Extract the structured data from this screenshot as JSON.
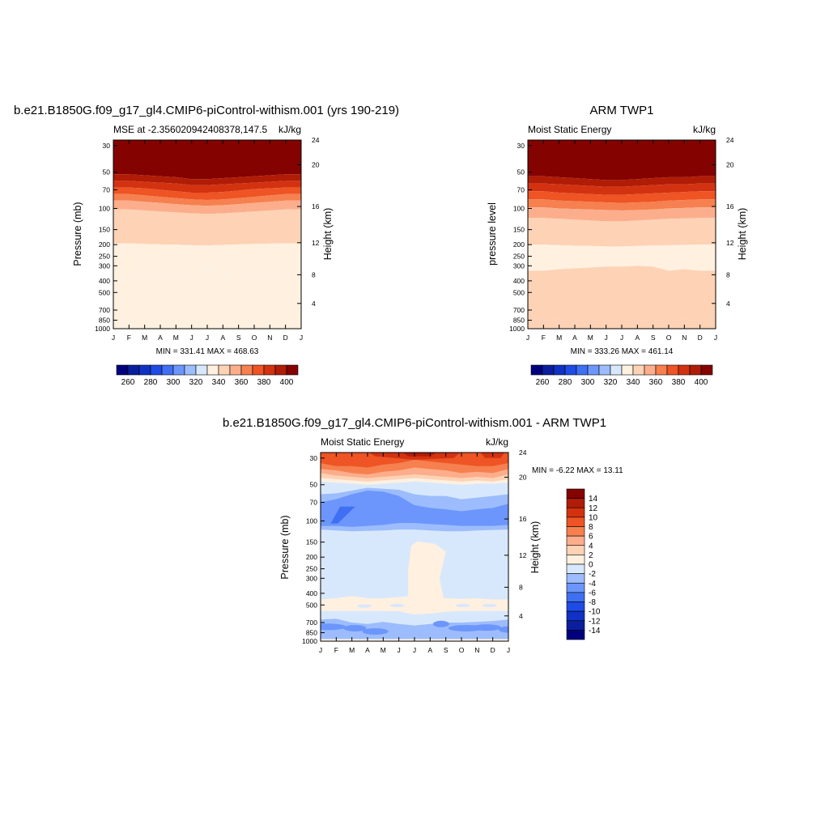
{
  "colors": {
    "palette": [
      "#00007f",
      "#0a1e9e",
      "#0f32c4",
      "#1e4be6",
      "#3f6ff2",
      "#6c96fb",
      "#9cbcfd",
      "#d8e8fc",
      "#fff0e0",
      "#fdd2b5",
      "#fcae8c",
      "#f6804f",
      "#ee5424",
      "#d33211",
      "#b01c06",
      "#840300"
    ],
    "palette_neg": [
      "#00007f",
      "#0a1e9e",
      "#0f32c4",
      "#1e4be6",
      "#3f6ff2",
      "#6c96fb",
      "#9cbcfd",
      "#d8e8fc"
    ],
    "palette_pos": [
      "#fff0e0",
      "#fdd2b5",
      "#fcae8c",
      "#f6804f",
      "#ee5424",
      "#d33211",
      "#b01c06",
      "#840300"
    ]
  },
  "months": [
    "J",
    "F",
    "M",
    "A",
    "M",
    "J",
    "J",
    "A",
    "S",
    "O",
    "N",
    "D",
    "J"
  ],
  "pressure_ticks": [
    "30",
    "50",
    "70",
    "100",
    "150",
    "200",
    "250",
    "300",
    "400",
    "500",
    "700",
    "850",
    "1000"
  ],
  "height_ticks": [
    "24",
    "20",
    "16",
    "12",
    "8",
    "4"
  ],
  "top_colorbar_labels": [
    "260",
    "280",
    "300",
    "320",
    "340",
    "360",
    "380",
    "400"
  ],
  "diff_colorbar_labels": [
    "14",
    "12",
    "10",
    "8",
    "6",
    "4",
    "2",
    "0",
    "-2",
    "-4",
    "-6",
    "-8",
    "-10",
    "-12",
    "-14"
  ],
  "panel_model": {
    "title": "b.e21.B1850G.f09_g17_gl4.CMIP6-piControl-withism.001 (yrs 190-219)",
    "left_string": "MSE at -2.3560209424083​78,147.5",
    "right_string": "kJ/kg",
    "ylabel": "Pressure (mb)",
    "rlabel": "Height (km)",
    "stats": "MIN = 331.41 MAX = 468.63"
  },
  "panel_obs": {
    "title": "ARM TWP1",
    "left_string": "Moist Static Energy",
    "right_string": "kJ/kg",
    "ylabel": "pressure level",
    "rlabel": "Height (km)",
    "stats": "MIN = 333.26 MAX = 461.14"
  },
  "panel_diff": {
    "title": "b.e21.B1850G.f09_g17_gl4.CMIP6-piControl-withism.001 - ARM TWP1",
    "left_string": "Moist Static Energy",
    "right_string": "kJ/kg",
    "ylabel": "Pressure (mb)",
    "rlabel": "Height (km)",
    "stats": "MIN =  -6.22 MAX =  13.11"
  },
  "chart_data": [
    {
      "type": "heatmap",
      "title": "b.e21.B1850G.f09_g17_gl4.CMIP6-piControl-withism.001 (yrs 190-219)",
      "xlabel": "",
      "ylabel": "Pressure (mb)",
      "x": [
        "J",
        "F",
        "M",
        "A",
        "M",
        "J",
        "J",
        "A",
        "S",
        "O",
        "N",
        "D",
        "J"
      ],
      "y_pressure": [
        30,
        50,
        70,
        100,
        150,
        200,
        250,
        300,
        400,
        500,
        700,
        850,
        1000
      ],
      "y_height_km": [
        24,
        20,
        16,
        12,
        8,
        4
      ],
      "levels": [
        260,
        270,
        280,
        290,
        300,
        310,
        320,
        330,
        340,
        350,
        360,
        370,
        380,
        390,
        400,
        410
      ],
      "band_boundaries_mb": [
        [
          52,
          59,
          67,
          76,
          86,
          102,
          195,
          360,
          940
        ],
        [
          52,
          59,
          67,
          76,
          86,
          102,
          195,
          360,
          940
        ],
        [
          53,
          60,
          68,
          78,
          88,
          104,
          197,
          355,
          940
        ],
        [
          54,
          61,
          70,
          80,
          90,
          106,
          199,
          350,
          940
        ],
        [
          55,
          62,
          72,
          82,
          92,
          108,
          200,
          345,
          940
        ],
        [
          57,
          64,
          74,
          84,
          94,
          110,
          202,
          340,
          940
        ],
        [
          57,
          64,
          74,
          85,
          95,
          111,
          203,
          335,
          940
        ],
        [
          56,
          63,
          73,
          84,
          94,
          110,
          201,
          338,
          940
        ],
        [
          55,
          62,
          71,
          82,
          92,
          108,
          199,
          342,
          940
        ],
        [
          54,
          61,
          69,
          80,
          90,
          106,
          197,
          345,
          940
        ],
        [
          53,
          60,
          68,
          78,
          88,
          104,
          196,
          352,
          940
        ],
        [
          52,
          59,
          67,
          76,
          86,
          102,
          195,
          356,
          940
        ],
        [
          52,
          59,
          67,
          76,
          86,
          102,
          195,
          360,
          940
        ]
      ],
      "band_colors": [
        "#840300",
        "#b01c06",
        "#d33211",
        "#ee5424",
        "#f6804f",
        "#fcae8c",
        "#fdd2b5",
        "#fff0e0",
        "#fff0e0"
      ],
      "min": 331.41,
      "max": 468.63
    },
    {
      "type": "heatmap",
      "title": "ARM TWP1",
      "xlabel": "",
      "ylabel": "pressure level",
      "x": [
        "J",
        "F",
        "M",
        "A",
        "M",
        "J",
        "J",
        "A",
        "S",
        "O",
        "N",
        "D",
        "J"
      ],
      "y_pressure": [
        30,
        50,
        70,
        100,
        150,
        200,
        250,
        300,
        400,
        500,
        700,
        850,
        1000
      ],
      "y_height_km": [
        24,
        20,
        16,
        12,
        8,
        4
      ],
      "levels": [
        260,
        270,
        280,
        290,
        300,
        310,
        320,
        330,
        340,
        350,
        360,
        370,
        380,
        390,
        400,
        410
      ],
      "band_boundaries_mb": [
        [
          54,
          62,
          72,
          84,
          98,
          120,
          200,
          330,
          830
        ],
        [
          54,
          62,
          72,
          84,
          98,
          120,
          200,
          330,
          850
        ],
        [
          55,
          63,
          74,
          86,
          100,
          122,
          202,
          320,
          840
        ],
        [
          56,
          64,
          75,
          87,
          101,
          124,
          204,
          315,
          860
        ],
        [
          57,
          65,
          76,
          88,
          102,
          126,
          205,
          310,
          850
        ],
        [
          58,
          66,
          77,
          89,
          103,
          128,
          207,
          305,
          860
        ],
        [
          58,
          66,
          77,
          90,
          104,
          128,
          207,
          305,
          850
        ],
        [
          57,
          65,
          76,
          89,
          103,
          126,
          205,
          300,
          860
        ],
        [
          56,
          64,
          75,
          88,
          102,
          124,
          203,
          305,
          850
        ],
        [
          55,
          63,
          74,
          86,
          100,
          122,
          202,
          330,
          860
        ],
        [
          55,
          63,
          73,
          85,
          99,
          121,
          201,
          320,
          840
        ],
        [
          54,
          62,
          72,
          84,
          98,
          120,
          200,
          330,
          850
        ],
        [
          54,
          62,
          72,
          84,
          98,
          120,
          200,
          330,
          830
        ]
      ],
      "band_colors": [
        "#840300",
        "#b01c06",
        "#d33211",
        "#ee5424",
        "#f6804f",
        "#fcae8c",
        "#fdd2b5",
        "#fff0e0",
        "#fdd2b5"
      ],
      "min": 333.26,
      "max": 461.14
    },
    {
      "type": "heatmap",
      "title": "b.e21.B1850G.f09_g17_gl4.CMIP6-piControl-withism.001 - ARM TWP1",
      "xlabel": "",
      "ylabel": "Pressure (mb)",
      "x": [
        "J",
        "F",
        "M",
        "A",
        "M",
        "J",
        "J",
        "A",
        "S",
        "O",
        "N",
        "D",
        "J"
      ],
      "y_pressure": [
        30,
        50,
        70,
        100,
        150,
        200,
        250,
        300,
        400,
        500,
        700,
        850,
        1000
      ],
      "y_height_km": [
        24,
        20,
        16,
        12,
        8,
        4
      ],
      "levels": [
        -14,
        -12,
        -10,
        -8,
        -6,
        -4,
        -2,
        0,
        2,
        4,
        6,
        8,
        10,
        12,
        14
      ],
      "min": -6.22,
      "max": 13.11
    }
  ]
}
